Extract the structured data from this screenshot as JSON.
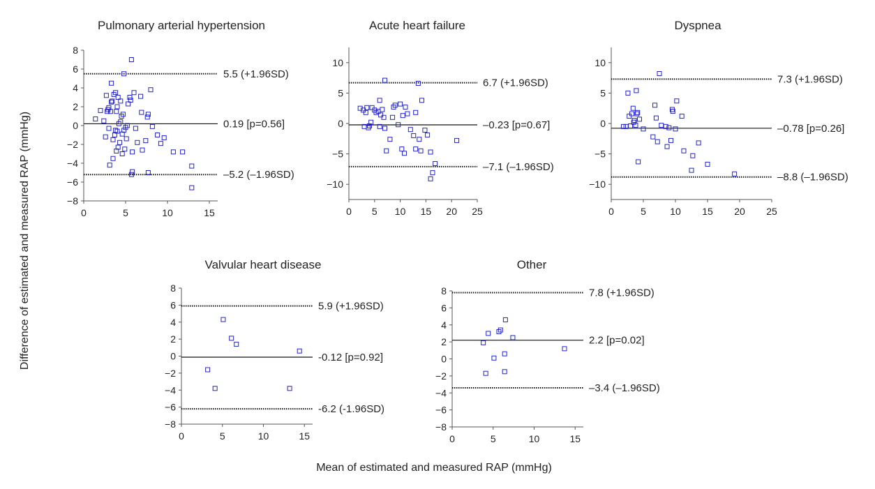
{
  "figure": {
    "xlabel": "Mean of estimated and measured RAP (mmHg)",
    "ylabel": "Difference of estimated and measured RAP (mmHg)",
    "colors": {
      "points": "#2222cc",
      "lines": "#111111",
      "text": "#222222"
    }
  },
  "chart_data": [
    {
      "type": "scatter",
      "title": "Pulmonary arterial hypertension",
      "xlim": [
        0,
        16
      ],
      "ylim": [
        -8,
        8
      ],
      "xticks": [
        0,
        5,
        10,
        15
      ],
      "yticks": [
        8,
        6,
        4,
        2,
        0,
        -2,
        -4,
        -6,
        -8
      ],
      "lines": [
        {
          "value": 5.5,
          "label": "5.5 (+1.96SD)",
          "style": "dotted"
        },
        {
          "value": 0.19,
          "label": "0.19 [p=0.56]",
          "style": "solid"
        },
        {
          "value": -5.2,
          "label": "–5.2 (–1.96SD)",
          "style": "dotted"
        }
      ],
      "points": [
        [
          1.4,
          0.7
        ],
        [
          2.0,
          1.6
        ],
        [
          2.4,
          0.5
        ],
        [
          2.6,
          -1.2
        ],
        [
          2.7,
          3.2
        ],
        [
          2.8,
          1.5
        ],
        [
          2.9,
          1.7
        ],
        [
          3.0,
          1.9
        ],
        [
          3.0,
          -0.3
        ],
        [
          3.1,
          -4.2
        ],
        [
          3.2,
          1.5
        ],
        [
          3.3,
          2.5
        ],
        [
          3.3,
          4.5
        ],
        [
          3.4,
          2.6
        ],
        [
          3.5,
          -1.5
        ],
        [
          3.5,
          -3.5
        ],
        [
          3.6,
          3.3
        ],
        [
          3.7,
          -1.0
        ],
        [
          3.8,
          -0.5
        ],
        [
          3.8,
          3.5
        ],
        [
          3.9,
          -2.7
        ],
        [
          3.9,
          1.5
        ],
        [
          4.0,
          -0.6
        ],
        [
          4.0,
          2.0
        ],
        [
          4.1,
          -2.3
        ],
        [
          4.1,
          3.0
        ],
        [
          4.2,
          0.2
        ],
        [
          4.3,
          -1.8
        ],
        [
          4.4,
          2.6
        ],
        [
          4.4,
          0.4
        ],
        [
          4.5,
          1.0
        ],
        [
          4.6,
          -0.9
        ],
        [
          4.6,
          -3.0
        ],
        [
          4.7,
          1.2
        ],
        [
          4.8,
          5.5
        ],
        [
          4.8,
          -0.5
        ],
        [
          4.9,
          -2.5
        ],
        [
          5.0,
          -0.2
        ],
        [
          5.1,
          -1.4
        ],
        [
          5.2,
          0.0
        ],
        [
          5.3,
          2.3
        ],
        [
          5.5,
          3.0
        ],
        [
          5.6,
          2.7
        ],
        [
          5.7,
          7.0
        ],
        [
          5.8,
          -2.8
        ],
        [
          5.8,
          -4.9
        ],
        [
          5.7,
          -5.2
        ],
        [
          6.0,
          3.5
        ],
        [
          6.2,
          -0.3
        ],
        [
          6.4,
          -1.8
        ],
        [
          6.8,
          3.1
        ],
        [
          6.9,
          1.4
        ],
        [
          7.0,
          -2.6
        ],
        [
          7.4,
          -1.6
        ],
        [
          7.6,
          0.9
        ],
        [
          7.7,
          1.2
        ],
        [
          7.7,
          -5.0
        ],
        [
          8.0,
          3.8
        ],
        [
          8.2,
          -0.1
        ],
        [
          8.8,
          -1.0
        ],
        [
          9.2,
          -1.9
        ],
        [
          9.6,
          -1.3
        ],
        [
          10.7,
          -2.8
        ],
        [
          11.8,
          -2.8
        ],
        [
          12.9,
          -4.3
        ],
        [
          12.9,
          -6.6
        ]
      ]
    },
    {
      "type": "scatter",
      "title": "Acute heart failure",
      "xlim": [
        0,
        25
      ],
      "ylim": [
        -12.5,
        12.5
      ],
      "xticks": [
        0,
        5,
        10,
        15,
        20,
        25
      ],
      "yticks": [
        10,
        5,
        0,
        -5,
        -10
      ],
      "lines": [
        {
          "value": 6.7,
          "label": "6.7 (+1.96SD)",
          "style": "dotted"
        },
        {
          "value": -0.23,
          "label": "–0.23 [p=0.67]",
          "style": "solid"
        },
        {
          "value": -7.1,
          "label": "–7.1 (–1.96SD)",
          "style": "dotted"
        }
      ],
      "points": [
        [
          2.2,
          2.5
        ],
        [
          2.8,
          2.2
        ],
        [
          3.0,
          -0.5
        ],
        [
          3.3,
          1.8
        ],
        [
          3.5,
          2.6
        ],
        [
          3.8,
          -0.7
        ],
        [
          4.0,
          -0.4
        ],
        [
          4.3,
          0.2
        ],
        [
          4.5,
          2.6
        ],
        [
          5.0,
          2.2
        ],
        [
          5.3,
          1.8
        ],
        [
          5.7,
          2.0
        ],
        [
          6.0,
          -0.5
        ],
        [
          6.0,
          3.8
        ],
        [
          6.2,
          1.4
        ],
        [
          6.5,
          2.3
        ],
        [
          6.8,
          1.0
        ],
        [
          7.0,
          7.1
        ],
        [
          7.0,
          -0.8
        ],
        [
          7.3,
          -4.5
        ],
        [
          8.0,
          -2.6
        ],
        [
          8.5,
          1.0
        ],
        [
          8.7,
          2.7
        ],
        [
          9.0,
          3.0
        ],
        [
          9.6,
          -0.2
        ],
        [
          10.0,
          3.2
        ],
        [
          10.3,
          -4.2
        ],
        [
          10.5,
          1.3
        ],
        [
          10.8,
          -4.9
        ],
        [
          11.0,
          2.7
        ],
        [
          11.4,
          1.6
        ],
        [
          12.0,
          -1.0
        ],
        [
          12.6,
          -2.0
        ],
        [
          13.0,
          1.8
        ],
        [
          13.0,
          -4.2
        ],
        [
          13.5,
          6.6
        ],
        [
          13.7,
          -2.6
        ],
        [
          14.0,
          -4.5
        ],
        [
          14.2,
          3.8
        ],
        [
          14.8,
          -1.1
        ],
        [
          15.3,
          -1.9
        ],
        [
          15.9,
          -4.7
        ],
        [
          15.9,
          -9.1
        ],
        [
          16.3,
          -8.1
        ],
        [
          16.8,
          -6.6
        ],
        [
          21.0,
          -2.8
        ]
      ]
    },
    {
      "type": "scatter",
      "title": "Dyspnea",
      "xlim": [
        0,
        25
      ],
      "ylim": [
        -12.5,
        12.5
      ],
      "xticks": [
        0,
        5,
        10,
        15,
        20,
        25
      ],
      "yticks": [
        10,
        5,
        0,
        -5,
        -10
      ],
      "lines": [
        {
          "value": 7.3,
          "label": "7.3 (+1.96SD)",
          "style": "dotted"
        },
        {
          "value": -0.78,
          "label": "–0.78 [p=0.26]",
          "style": "solid"
        },
        {
          "value": -8.8,
          "label": "–8.8 (–1.96SD)",
          "style": "dotted"
        }
      ],
      "points": [
        [
          1.9,
          -0.5
        ],
        [
          2.3,
          -0.5
        ],
        [
          2.6,
          5.0
        ],
        [
          2.8,
          1.2
        ],
        [
          3.0,
          -0.4
        ],
        [
          3.2,
          1.6
        ],
        [
          3.4,
          2.5
        ],
        [
          3.5,
          0.2
        ],
        [
          3.6,
          0.5
        ],
        [
          3.8,
          -0.3
        ],
        [
          3.9,
          5.4
        ],
        [
          4.0,
          1.6
        ],
        [
          4.1,
          1.8
        ],
        [
          4.2,
          -6.3
        ],
        [
          4.4,
          0.7
        ],
        [
          5.0,
          -0.9
        ],
        [
          6.5,
          -2.2
        ],
        [
          6.8,
          3.0
        ],
        [
          7.0,
          0.9
        ],
        [
          7.2,
          -3.0
        ],
        [
          7.5,
          8.2
        ],
        [
          7.8,
          -0.3
        ],
        [
          8.5,
          -0.5
        ],
        [
          8.7,
          -3.8
        ],
        [
          9.0,
          -0.7
        ],
        [
          9.3,
          -2.8
        ],
        [
          9.5,
          2.3
        ],
        [
          9.6,
          2.0
        ],
        [
          10.0,
          -0.9
        ],
        [
          10.2,
          3.7
        ],
        [
          11.0,
          1.2
        ],
        [
          11.3,
          -4.5
        ],
        [
          12.5,
          -7.7
        ],
        [
          12.7,
          -5.3
        ],
        [
          13.6,
          -3.2
        ],
        [
          15.0,
          -6.7
        ],
        [
          19.2,
          -8.3
        ]
      ]
    },
    {
      "type": "scatter",
      "title": "Valvular heart disease",
      "xlim": [
        0,
        16
      ],
      "ylim": [
        -8,
        8
      ],
      "xticks": [
        0,
        5,
        10,
        15
      ],
      "yticks": [
        8,
        6,
        4,
        2,
        0,
        -2,
        -4,
        -6,
        -8
      ],
      "lines": [
        {
          "value": 5.9,
          "label": "5.9 (+1.96SD)",
          "style": "dotted"
        },
        {
          "value": -0.12,
          "label": "-0.12 [p=0.92]",
          "style": "solid"
        },
        {
          "value": -6.2,
          "label": "-6.2 (-1.96SD)",
          "style": "dotted"
        }
      ],
      "points": [
        [
          3.2,
          -1.6
        ],
        [
          4.1,
          -3.8
        ],
        [
          5.1,
          4.3
        ],
        [
          6.1,
          2.1
        ],
        [
          6.7,
          1.4
        ],
        [
          13.2,
          -3.8
        ],
        [
          14.4,
          0.6
        ]
      ]
    },
    {
      "type": "scatter",
      "title": "Other",
      "xlim": [
        0,
        16
      ],
      "ylim": [
        -8,
        8
      ],
      "xticks": [
        0,
        5,
        10,
        15
      ],
      "yticks": [
        8,
        6,
        4,
        2,
        0,
        -2,
        -4,
        -6,
        -8
      ],
      "lines": [
        {
          "value": 7.8,
          "label": "7.8 (+1.96SD)",
          "style": "dotted"
        },
        {
          "value": 2.2,
          "label": "2.2 [p=0.02]",
          "style": "solid"
        },
        {
          "value": -3.4,
          "label": "–3.4 (–1.96SD)",
          "style": "dotted"
        }
      ],
      "points": [
        [
          3.8,
          1.9
        ],
        [
          4.1,
          -1.7
        ],
        [
          4.4,
          3.0
        ],
        [
          5.1,
          0.1
        ],
        [
          5.7,
          3.2
        ],
        [
          5.9,
          3.4
        ],
        [
          6.4,
          0.6
        ],
        [
          6.4,
          -1.5
        ],
        [
          6.5,
          4.6
        ],
        [
          7.4,
          2.5
        ],
        [
          13.7,
          1.2
        ]
      ]
    }
  ]
}
